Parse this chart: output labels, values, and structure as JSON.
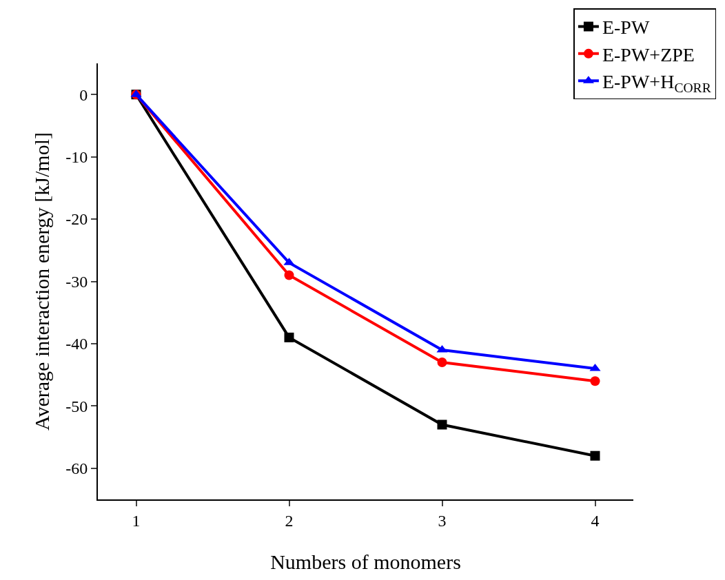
{
  "chart_data": {
    "type": "line",
    "xlabel": "Numbers of monomers",
    "ylabel": "Average interaction energy [kJ/mol]",
    "x": [
      1,
      2,
      3,
      4
    ],
    "series": [
      {
        "name": "E-PW",
        "color": "#000000",
        "marker": "square",
        "values": [
          0,
          -39,
          -53,
          -58
        ]
      },
      {
        "name": "E-PW+ZPE",
        "color": "#ff0000",
        "marker": "circle",
        "values": [
          0,
          -29,
          -43,
          -46
        ]
      },
      {
        "name": "E-PW+H$_{CORR}$",
        "color": "#0000ff",
        "marker": "triangle",
        "values": [
          0,
          -27,
          -41,
          -44
        ]
      }
    ],
    "xlim": [
      0.75,
      4.25
    ],
    "xticks": [
      1,
      2,
      3,
      4
    ],
    "ylim": [
      -65,
      5
    ],
    "yticks": [
      {
        "value": 0,
        "label": "0"
      },
      {
        "value": -10,
        "label": "-10"
      },
      {
        "value": -20,
        "label": "-20"
      },
      {
        "value": -30,
        "label": "-30"
      },
      {
        "value": -40,
        "label": "-40"
      },
      {
        "value": -50,
        "label": "-50"
      },
      {
        "value": -60,
        "label": "-60"
      }
    ],
    "grid": false,
    "legend": "top right",
    "line_style": "solid"
  }
}
